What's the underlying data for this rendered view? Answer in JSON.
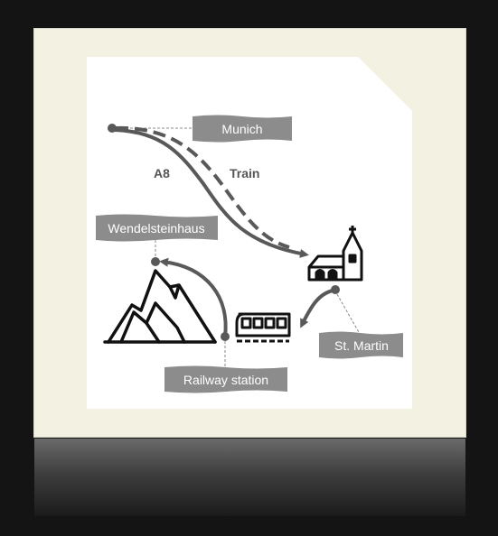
{
  "labels": {
    "munich": "Munich",
    "wendelsteinhaus": "Wendelsteinhaus",
    "st_martin": "St. Martin",
    "railway_station": "Railway station",
    "a8": "A8",
    "train": "Train"
  },
  "colors": {
    "background": "#141414",
    "frame": "#f3f1e2",
    "paper": "#ffffff",
    "banner": "#8c8c8c",
    "route": "#595959",
    "icon": "#111111"
  },
  "icons": [
    "mountain-icon",
    "church-icon",
    "train-icon"
  ]
}
